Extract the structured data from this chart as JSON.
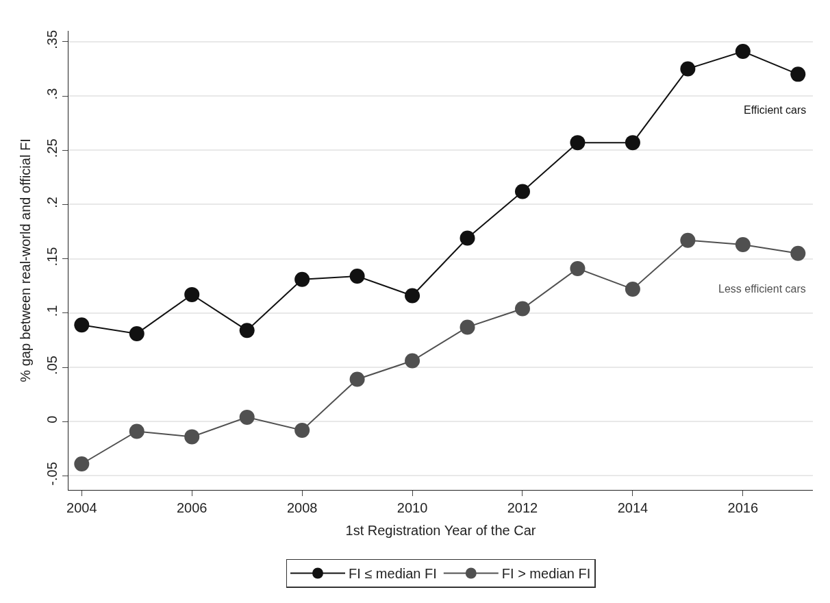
{
  "chart_data": {
    "type": "line",
    "xlabel": "1st Registration Year of the Car",
    "ylabel": "% gap between real-world and official FI",
    "x": [
      2004,
      2005,
      2006,
      2007,
      2008,
      2009,
      2010,
      2011,
      2012,
      2013,
      2014,
      2015,
      2016,
      2017
    ],
    "series": [
      {
        "name": "FI ≤ median FI",
        "color": "#111111",
        "values": [
          0.089,
          0.081,
          0.117,
          0.084,
          0.131,
          0.134,
          0.116,
          0.169,
          0.212,
          0.257,
          0.257,
          0.325,
          0.341,
          0.32
        ]
      },
      {
        "name": "FI > median FI",
        "color": "#505050",
        "values": [
          -0.039,
          -0.009,
          -0.014,
          0.004,
          -0.008,
          0.039,
          0.056,
          0.087,
          0.104,
          0.141,
          0.122,
          0.167,
          0.163,
          0.155
        ]
      }
    ],
    "annotations": [
      "Efficient cars",
      "Less efficient cars"
    ],
    "xlim": [
      2003.76,
      2017.27
    ],
    "xticks": [
      2004,
      2006,
      2008,
      2010,
      2012,
      2014,
      2016
    ],
    "ylim": [
      -0.063,
      0.36
    ],
    "yticks": [
      {
        "value": -0.05,
        "label": "-.05"
      },
      0,
      {
        "value": 0.05,
        "label": ".05"
      },
      {
        "value": 0.1,
        "label": ".1"
      },
      {
        "value": 0.15,
        "label": ".15"
      },
      {
        "value": 0.2,
        "label": ".2"
      },
      {
        "value": 0.25,
        "label": ".25"
      },
      {
        "value": 0.3,
        "label": ".3"
      },
      {
        "value": 0.35,
        "label": ".35"
      }
    ],
    "grid": "y",
    "legend": "bottom",
    "marker": "circle",
    "line_style": "solid"
  }
}
